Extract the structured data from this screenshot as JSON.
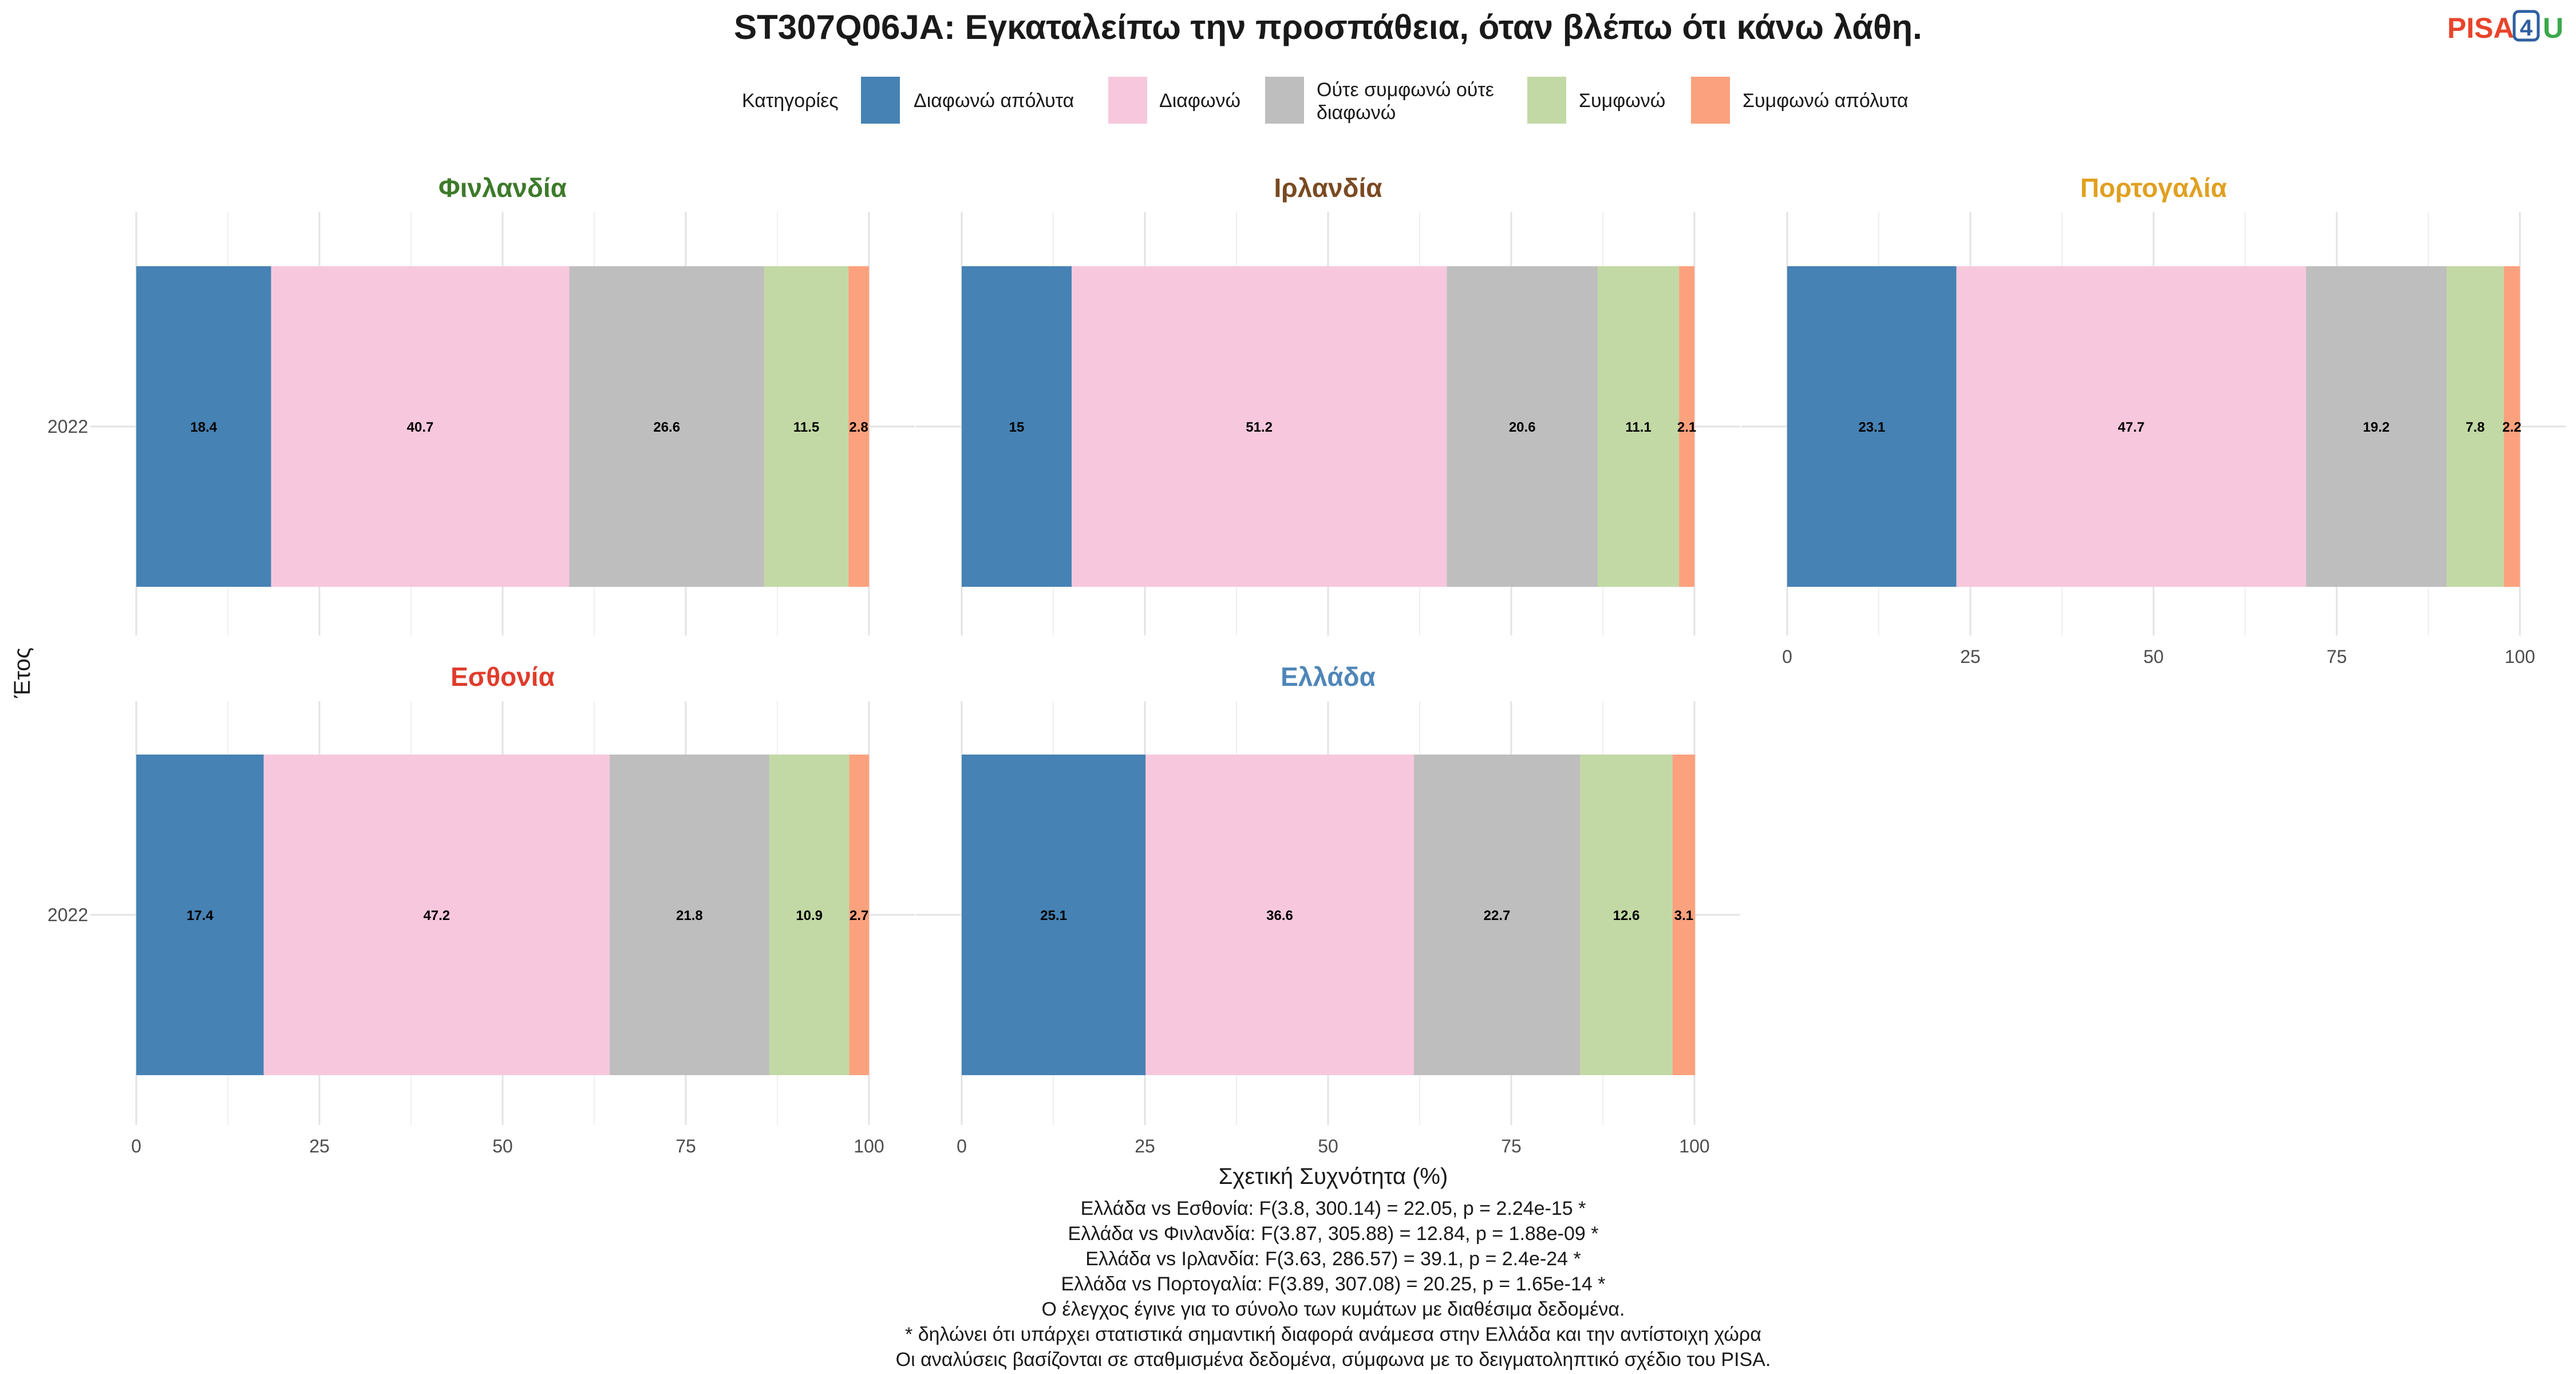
{
  "title": "ST307Q06JA: Εγκαταλείπω την προσπάθεια, όταν βλέπω ότι κάνω λάθη.",
  "logo": {
    "part1": "PISA",
    "part2": "4",
    "part3": "U",
    "colors": {
      "part1": "#e8442b",
      "part2": "#2f5fa0",
      "part3": "#3aa84a"
    }
  },
  "legend": {
    "title": "Κατηγορίες",
    "items": [
      {
        "label": "Διαφωνώ απόλυτα",
        "color": "#4682b4"
      },
      {
        "label": "Διαφωνώ",
        "color": "#f7c8dd"
      },
      {
        "label": "Ούτε συμφωνώ ούτε διαφωνώ",
        "line1": "Ούτε συμφωνώ ούτε",
        "line2": "διαφωνώ",
        "color": "#bebebe"
      },
      {
        "label": "Συμφωνώ",
        "color": "#c2d9a5"
      },
      {
        "label": "Συμφωνώ απόλυτα",
        "color": "#fba17d"
      }
    ]
  },
  "chart_data": {
    "type": "bar",
    "orientation": "horizontal",
    "stacked": true,
    "x_axis_title": "Σχετική Συχνότητα (%)",
    "y_axis_title": "Έτος",
    "xlim": [
      0,
      100
    ],
    "x_ticks": [
      "0",
      "25",
      "50",
      "75",
      "100"
    ],
    "categories": [
      "Διαφωνώ απόλυτα",
      "Διαφωνώ",
      "Ούτε συμφωνώ ούτε διαφωνώ",
      "Συμφωνώ",
      "Συμφωνώ απόλυτα"
    ],
    "colors": [
      "#4682b4",
      "#f7c8dd",
      "#bebebe",
      "#c2d9a5",
      "#fba17d"
    ],
    "grid": true,
    "legend_position": "top",
    "panels": [
      {
        "country": "Φινλανδία",
        "color": "#3d7a2a",
        "year": "2022",
        "values": [
          18.4,
          40.7,
          26.6,
          11.5,
          2.8
        ]
      },
      {
        "country": "Ιρλανδία",
        "color": "#7a4a22",
        "year": "2022",
        "values": [
          15,
          51.2,
          20.6,
          11.1,
          2.1
        ]
      },
      {
        "country": "Πορτογαλία",
        "color": "#e0a020",
        "year": "2022",
        "values": [
          23.1,
          47.7,
          19.2,
          7.8,
          2.2
        ]
      },
      {
        "country": "Εσθονία",
        "color": "#e03c2c",
        "year": "2022",
        "values": [
          17.4,
          47.2,
          21.8,
          10.9,
          2.7
        ]
      },
      {
        "country": "Ελλάδα",
        "color": "#4f86b8",
        "year": "2022",
        "values": [
          25.1,
          36.6,
          22.7,
          12.6,
          3.1
        ]
      }
    ]
  },
  "caption": [
    "Ελλάδα vs Εσθονία: F(3.8, 300.14) = 22.05, p = 2.24e-15 *",
    "Ελλάδα vs Φινλανδία: F(3.87, 305.88) = 12.84, p = 1.88e-09 *",
    "Ελλάδα vs Ιρλανδία: F(3.63, 286.57) = 39.1, p = 2.4e-24 *",
    "Ελλάδα vs Πορτογαλία: F(3.89, 307.08) = 20.25, p = 1.65e-14 *",
    "Ο έλεγχος έγινε για το σύνολο των κυμάτων με διαθέσιμα δεδομένα.",
    "* δηλώνει ότι υπάρχει στατιστικά σημαντική διαφορά ανάμεσα στην Ελλάδα και την αντίστοιχη χώρα",
    "Οι αναλύσεις βασίζονται σε σταθμισμένα δεδομένα, σύμφωνα με το δειγματοληπτικό σχέδιο του PISA."
  ]
}
